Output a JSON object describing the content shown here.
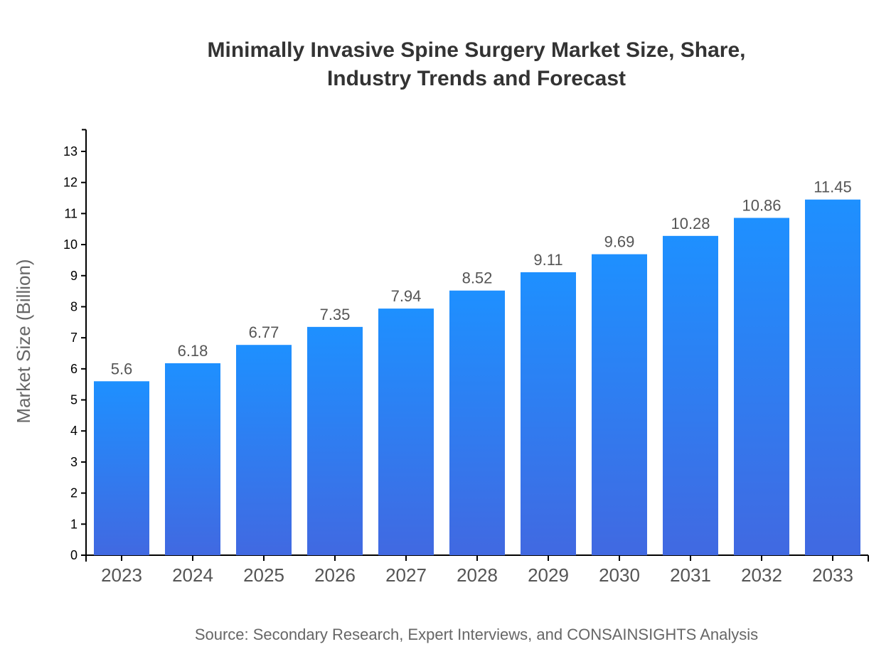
{
  "chart_data": {
    "type": "bar",
    "title_lines": [
      "Minimally Invasive Spine Surgery Market Size, Share,",
      "Industry Trends and Forecast"
    ],
    "xlabel": "",
    "ylabel": "Market Size (Billion)",
    "categories": [
      "2023",
      "2024",
      "2025",
      "2026",
      "2027",
      "2028",
      "2029",
      "2030",
      "2031",
      "2032",
      "2033"
    ],
    "values": [
      5.6,
      6.18,
      6.77,
      7.35,
      7.94,
      8.52,
      9.11,
      9.69,
      10.28,
      10.86,
      11.45
    ],
    "ylim": [
      0,
      13.7
    ],
    "yticks": [
      0,
      1,
      2,
      3,
      4,
      5,
      6,
      7,
      8,
      9,
      10,
      11,
      12,
      13
    ],
    "grid": false,
    "colors": {
      "bar_top": "#1E90FF",
      "bar_bottom": "#4169E1"
    }
  },
  "source": "Source: Secondary Research, Expert Interviews, and CONSAINSIGHTS Analysis"
}
